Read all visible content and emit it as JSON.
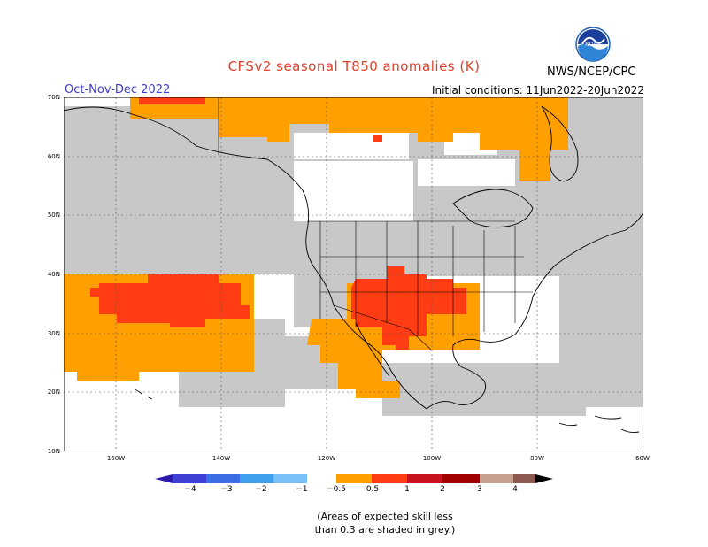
{
  "title": "CFSv2 seasonal T850 anomalies (K)",
  "season": "Oct-Nov-Dec 2022",
  "initial_conditions": "Initial conditions: 11Jun2022-20Jun2022",
  "agency": "NWS/NCEP/CPC",
  "logo_text": "NOAA",
  "lat_labels": [
    "70N",
    "60N",
    "50N",
    "40N",
    "30N",
    "20N",
    "10N"
  ],
  "lon_labels": [
    "160W",
    "140W",
    "120W",
    "100W",
    "80W",
    "60W"
  ],
  "colorbar_labels": [
    "−4",
    "−3",
    "−2",
    "−1",
    "−0.5",
    "0.5",
    "1",
    "2",
    "3",
    "4"
  ],
  "colorbar_colors": [
    "#2a1ca8",
    "#3f3fd6",
    "#3c6ee6",
    "#3fa0f0",
    "#78c0f8",
    "#ffffff",
    "#ff9f00",
    "#ff3c14",
    "#c8141e",
    "#a00000",
    "#c8a090",
    "#8c5a50"
  ],
  "colors": {
    "grey_low_skill": "#c8c8c8",
    "warm_05_1": "#ff9f00",
    "warm_1_2": "#ff3c14"
  },
  "note_line1": "(Areas of expected skill less",
  "note_line2": "than 0.3 are shaded in grey.)"
}
